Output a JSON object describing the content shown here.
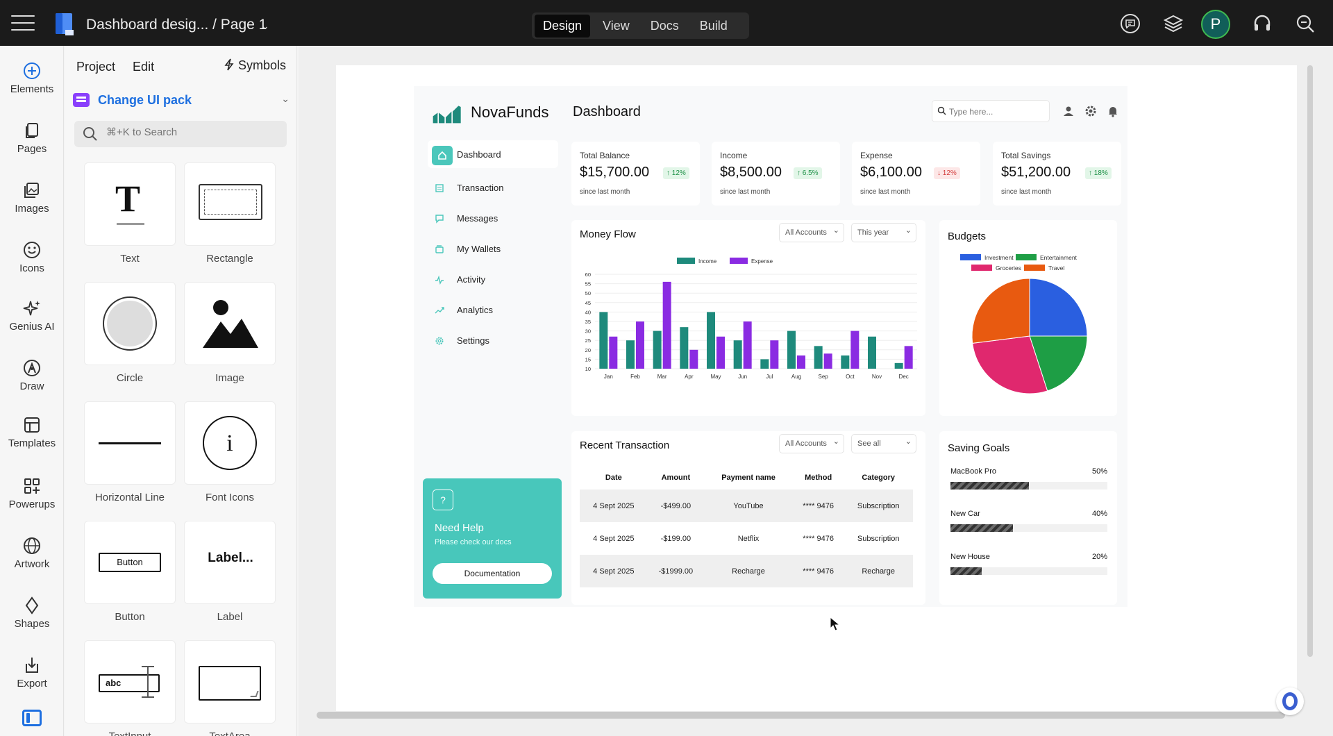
{
  "app": {
    "doc_title": "Dashboard desig... / Page 1",
    "modes": [
      "Design",
      "View",
      "Docs",
      "Build"
    ],
    "active_mode": "Design",
    "avatar_letter": "P"
  },
  "rail": [
    "Elements",
    "Pages",
    "Images",
    "Icons",
    "Genius AI",
    "Draw",
    "Templates",
    "Powerups",
    "Artwork",
    "Shapes",
    "Export"
  ],
  "panel": {
    "menus": [
      "Project",
      "Edit"
    ],
    "symbols": "Symbols",
    "ui_pack": "Change UI pack",
    "search_placeholder": "⌘+K to Search",
    "tiles": [
      "Text",
      "Rectangle",
      "Circle",
      "Image",
      "Horizontal Line",
      "Font Icons",
      "Button",
      "Label",
      "TextInput",
      "TextArea"
    ],
    "tile_previews": {
      "text": "T",
      "button": "Button",
      "label": "Label...",
      "textinput": "abc"
    }
  },
  "dashboard": {
    "brand": "NovaFunds",
    "title": "Dashboard",
    "search_placeholder": "Type here...",
    "nav": [
      "Dashboard",
      "Transaction",
      "Messages",
      "My Wallets",
      "Activity",
      "Analytics",
      "Settings"
    ],
    "help": {
      "title": "Need Help",
      "subtitle": "Please check our docs",
      "button": "Documentation"
    },
    "stats": [
      {
        "label": "Total Balance",
        "value": "$15,700.00",
        "badge": "↑ 12%",
        "trend": "up",
        "since": "since last month"
      },
      {
        "label": "Income",
        "value": "$8,500.00",
        "badge": "↑ 6.5%",
        "trend": "up",
        "since": "since last month"
      },
      {
        "label": "Expense",
        "value": "$6,100.00",
        "badge": "↓ 12%",
        "trend": "down",
        "since": "since last month"
      },
      {
        "label": "Total Savings",
        "value": "$51,200.00",
        "badge": "↑ 18%",
        "trend": "up",
        "since": "since last month"
      }
    ],
    "money_flow": {
      "title": "Money Flow",
      "filter1": "All Accounts",
      "filter2": "This year"
    },
    "budgets": {
      "title": "Budgets"
    },
    "recent": {
      "title": "Recent Transaction",
      "filter1": "All Accounts",
      "filter2": "See all",
      "columns": [
        "Date",
        "Amount",
        "Payment name",
        "Method",
        "Category"
      ],
      "rows": [
        [
          "4 Sept 2025",
          "-$499.00",
          "YouTube",
          "**** 9476",
          "Subscription"
        ],
        [
          "4 Sept 2025",
          "-$199.00",
          "Netflix",
          "**** 9476",
          "Subscription"
        ],
        [
          "4 Sept 2025",
          "-$1999.00",
          "Recharge",
          "**** 9476",
          "Recharge"
        ]
      ]
    },
    "goals": {
      "title": "Saving Goals",
      "items": [
        {
          "name": "MacBook Pro",
          "percent_label": "50%",
          "progress": 0.5
        },
        {
          "name": "New Car",
          "percent_label": "40%",
          "progress": 0.4
        },
        {
          "name": "New House",
          "percent_label": "20%",
          "progress": 0.2
        }
      ]
    }
  },
  "chart_data": [
    {
      "type": "bar",
      "categories": [
        "Jan",
        "Feb",
        "Mar",
        "Apr",
        "May",
        "Jun",
        "Jul",
        "Aug",
        "Sep",
        "Oct",
        "Nov",
        "Dec"
      ],
      "series": [
        {
          "name": "Income",
          "color": "#1e8a7c",
          "values": [
            40,
            25,
            30,
            32,
            40,
            25,
            15,
            30,
            22,
            17,
            27,
            13
          ]
        },
        {
          "name": "Expense",
          "color": "#8a2be2",
          "values": [
            27,
            35,
            56,
            20,
            27,
            35,
            25,
            17,
            18,
            30,
            10,
            22
          ]
        }
      ],
      "ylim": [
        10,
        60
      ],
      "yticks": [
        10,
        15,
        20,
        25,
        30,
        35,
        40,
        45,
        50,
        55,
        60
      ],
      "grid": true,
      "legend": "top-center"
    },
    {
      "type": "pie",
      "labels": [
        "Investment",
        "Entertainment",
        "Groceries",
        "Travel"
      ],
      "values": [
        25,
        20,
        28,
        27
      ],
      "colors": [
        "#2a5fe0",
        "#1e9e45",
        "#e0286e",
        "#e85a10"
      ],
      "legend": "top"
    }
  ]
}
